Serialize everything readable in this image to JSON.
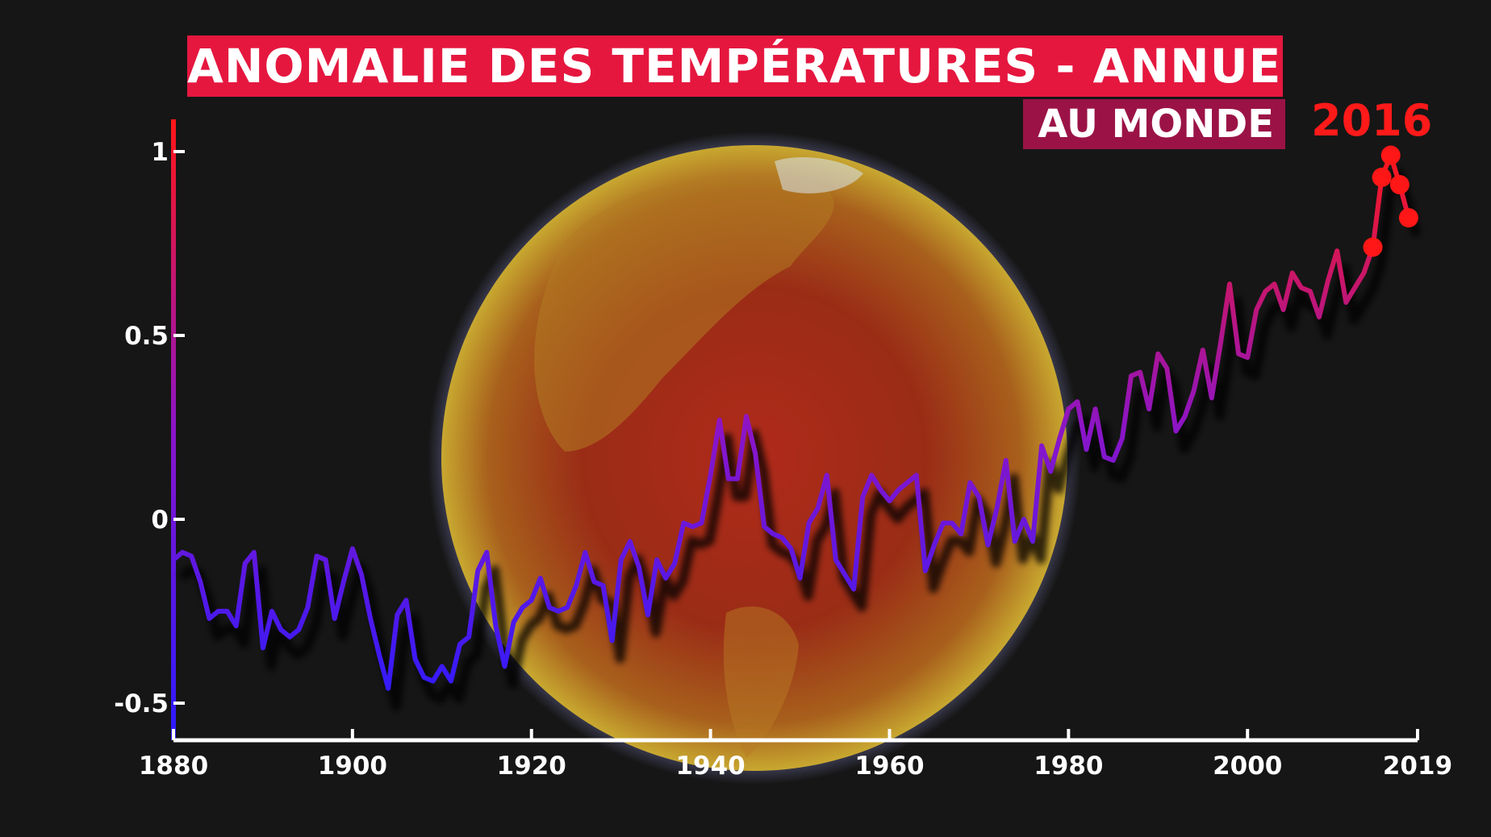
{
  "title": "ANOMALIE DES TEMPÉRATURES - ANNUELLE",
  "subtitle": "AU MONDE",
  "highlight_label": "2016",
  "colors": {
    "title_bg": "#e5173f",
    "subtitle_bg": "#9b1346",
    "low": "#2b1bff",
    "mid": "#8a15c8",
    "high": "#ff1616",
    "axis": "#ffffff"
  },
  "chart_data": {
    "type": "line",
    "title": "ANOMALIE DES TEMPÉRATURES - ANNUELLE",
    "subtitle": "AU MONDE",
    "xlabel": "",
    "ylabel": "",
    "xlim": [
      1880,
      2019
    ],
    "ylim": [
      -0.6,
      1.1
    ],
    "x_ticks": [
      1880,
      1900,
      1920,
      1940,
      1960,
      1980,
      2000,
      2019
    ],
    "y_ticks": [
      1,
      0.5,
      0,
      -0.5
    ],
    "y_tick_labels": [
      "1",
      "0.5",
      "0",
      "-0.5"
    ],
    "grid": false,
    "highlight": {
      "label": "2016",
      "years": [
        2014,
        2015,
        2016,
        2017,
        2018
      ]
    },
    "series": [
      {
        "years": [
          1880,
          1881,
          1882,
          1883,
          1884,
          1885,
          1886,
          1887,
          1888,
          1889,
          1890,
          1891,
          1892,
          1893,
          1894,
          1895,
          1896,
          1897,
          1898,
          1899,
          1900,
          1901,
          1902,
          1903,
          1904,
          1905,
          1906,
          1907,
          1908,
          1909,
          1910,
          1911,
          1912,
          1913,
          1914,
          1915,
          1916,
          1917,
          1918,
          1919,
          1920,
          1921,
          1922,
          1923,
          1924,
          1925,
          1926,
          1927,
          1928,
          1929,
          1930,
          1931,
          1932,
          1933,
          1934,
          1935,
          1936,
          1937,
          1938,
          1939,
          1940,
          1941,
          1942,
          1943,
          1944,
          1945,
          1946,
          1947,
          1948,
          1949,
          1950,
          1951,
          1952,
          1953,
          1954,
          1955,
          1956,
          1957,
          1958,
          1959,
          1960,
          1961,
          1962,
          1963,
          1964,
          1965,
          1966,
          1967,
          1968,
          1969,
          1970,
          1971,
          1972,
          1973,
          1974,
          1975,
          1976,
          1977,
          1978,
          1979,
          1980,
          1981,
          1982,
          1983,
          1984,
          1985,
          1986,
          1987,
          1988,
          1989,
          1990,
          1991,
          1992,
          1993,
          1994,
          1995,
          1996,
          1997,
          1998,
          1999,
          2000,
          2001,
          2002,
          2003,
          2004,
          2005,
          2006,
          2007,
          2008,
          2009,
          2010,
          2011,
          2012,
          2013,
          2014,
          2015,
          2016,
          2017,
          2018
        ],
        "values": [
          -0.11,
          -0.09,
          -0.1,
          -0.17,
          -0.27,
          -0.25,
          -0.25,
          -0.29,
          -0.12,
          -0.09,
          -0.35,
          -0.25,
          -0.3,
          -0.32,
          -0.3,
          -0.24,
          -0.1,
          -0.11,
          -0.27,
          -0.17,
          -0.08,
          -0.15,
          -0.27,
          -0.37,
          -0.46,
          -0.26,
          -0.22,
          -0.38,
          -0.43,
          -0.44,
          -0.4,
          -0.44,
          -0.34,
          -0.32,
          -0.14,
          -0.09,
          -0.29,
          -0.4,
          -0.28,
          -0.24,
          -0.22,
          -0.16,
          -0.24,
          -0.25,
          -0.24,
          -0.18,
          -0.09,
          -0.17,
          -0.18,
          -0.33,
          -0.11,
          -0.06,
          -0.13,
          -0.26,
          -0.11,
          -0.16,
          -0.12,
          -0.01,
          -0.02,
          -0.01,
          0.12,
          0.27,
          0.11,
          0.11,
          0.28,
          0.18,
          -0.02,
          -0.04,
          -0.05,
          -0.08,
          -0.16,
          -0.01,
          0.03,
          0.12,
          -0.11,
          -0.15,
          -0.19,
          0.06,
          0.12,
          0.08,
          0.05,
          0.08,
          0.1,
          0.12,
          -0.14,
          -0.07,
          -0.01,
          -0.01,
          -0.04,
          0.1,
          0.06,
          -0.07,
          0.03,
          0.16,
          -0.06,
          0.0,
          -0.06,
          0.2,
          0.13,
          0.22,
          0.3,
          0.32,
          0.19,
          0.3,
          0.17,
          0.16,
          0.22,
          0.39,
          0.4,
          0.3,
          0.45,
          0.41,
          0.24,
          0.28,
          0.35,
          0.46,
          0.33,
          0.48,
          0.64,
          0.45,
          0.44,
          0.57,
          0.62,
          0.64,
          0.57,
          0.67,
          0.63,
          0.62,
          0.55,
          0.65,
          0.73,
          0.59,
          0.63,
          0.67,
          0.74,
          0.93,
          0.99,
          0.91,
          0.82
        ]
      }
    ]
  }
}
